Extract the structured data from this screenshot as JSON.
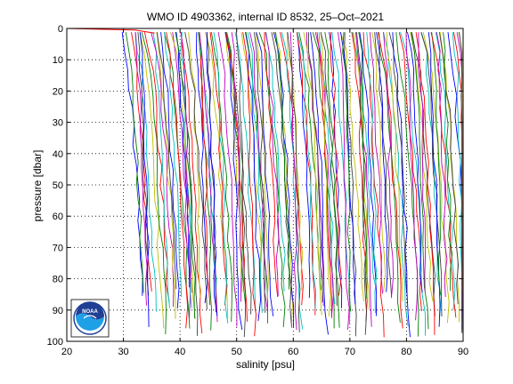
{
  "chart_data": {
    "type": "line",
    "title": "WMO ID 4903362, internal ID 8532, 25–Oct–2021",
    "xlabel": "salinity [psu]",
    "ylabel": "pressure [dbar]",
    "xlim": [
      20,
      90
    ],
    "ylim": [
      0,
      100
    ],
    "y_reversed": true,
    "grid": true,
    "x_ticks": [
      "20",
      "30",
      "40",
      "50",
      "60",
      "70",
      "80",
      "90"
    ],
    "y_ticks": [
      "0",
      "10",
      "20",
      "30",
      "40",
      "50",
      "60",
      "70",
      "80",
      "90",
      "100"
    ],
    "x_tick_values": [
      20,
      30,
      40,
      50,
      60,
      70,
      80,
      90
    ],
    "y_tick_values": [
      0,
      10,
      20,
      30,
      40,
      50,
      60,
      70,
      80,
      90,
      100
    ],
    "series_colors": [
      "#0000ff",
      "#008000",
      "#ff0000",
      "#00bfbf",
      "#bf00bf",
      "#bfbf00",
      "#404040"
    ],
    "series_summary": {
      "surface_offset_profile": {
        "x": [
          20,
          32,
          33,
          35.5
        ],
        "y": [
          0,
          0.5,
          0.8,
          1.5
        ]
      },
      "profile_start_salinity_range": [
        30,
        89
      ],
      "profile_count_approx": 140
    }
  },
  "logo": {
    "text": "NOAA",
    "colors": {
      "sky": "#1f3f94",
      "sea": "#1ea0e6",
      "ring": "#ffffff"
    }
  }
}
